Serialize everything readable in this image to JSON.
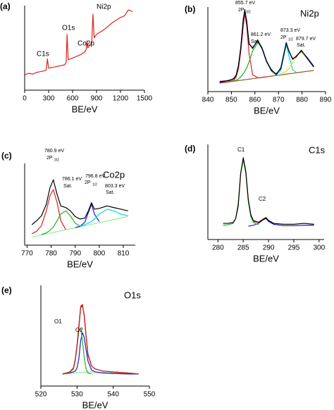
{
  "chart_data": [
    {
      "type": "line",
      "panel_label": "(a)",
      "xlabel": "BE/eV",
      "x": [
        0,
        50,
        100,
        150,
        200,
        250,
        270,
        285,
        300,
        400,
        500,
        520,
        531,
        545,
        600,
        700,
        750,
        770,
        780,
        790,
        840,
        855,
        870,
        900,
        1000,
        1100,
        1200,
        1250,
        1300,
        1350
      ],
      "xlim": [
        0,
        1500
      ],
      "xticks": [
        0,
        300,
        600,
        900,
        1200,
        1500
      ],
      "ylim": [
        0,
        100
      ],
      "series": [
        {
          "color": "#e0201b",
          "values": [
            18,
            20,
            19,
            21,
            22,
            23,
            24,
            37,
            26,
            28,
            30,
            33,
            66,
            36,
            38,
            42,
            45,
            48,
            58,
            50,
            56,
            90,
            62,
            66,
            72,
            80,
            86,
            88,
            95,
            93
          ]
        }
      ],
      "annotations": [
        "C1s",
        "O1s",
        "Co2p",
        "Ni2p"
      ]
    },
    {
      "type": "line",
      "panel_label": "(b)",
      "title": "Ni2p",
      "xlabel": "BE/eV",
      "x": [
        845,
        847,
        849,
        851,
        852,
        853,
        854,
        855,
        855.7,
        856.5,
        857.5,
        859,
        861.2,
        863,
        865,
        867,
        869,
        871,
        872,
        873.3,
        874.5,
        876,
        877.5,
        879.7,
        882,
        885
      ],
      "xlim": [
        840,
        890
      ],
      "xticks": [
        840,
        850,
        860,
        870,
        880,
        890
      ],
      "ylim": [
        0,
        100
      ],
      "series": [
        {
          "color": "#8b5a2b",
          "values": [
            10,
            10.75,
            11.5,
            12.25,
            12.6,
            13,
            13.4,
            13.75,
            14,
            14.3,
            14.7,
            15.25,
            16.1,
            16.75,
            17.5,
            18.25,
            19,
            19.75,
            20.1,
            20.6,
            21.1,
            21.6,
            22.2,
            23,
            23.9,
            25
          ]
        },
        {
          "color": "#e0201b",
          "values": [
            10.5,
            11,
            11.8,
            13.5,
            17,
            27,
            48,
            76,
            92,
            78,
            45,
            20,
            16.3,
            16.8,
            17.5,
            null,
            null,
            null,
            null,
            null,
            null,
            null,
            null,
            null,
            null,
            null
          ]
        },
        {
          "color": "#22b022",
          "values": [
            null,
            null,
            null,
            12.5,
            13.5,
            15,
            17.5,
            21,
            24,
            28,
            35,
            48,
            58,
            51,
            35,
            24,
            20,
            null,
            null,
            null,
            null,
            null,
            null,
            null,
            null,
            null
          ]
        },
        {
          "color": "#00d8e8",
          "values": [
            null,
            null,
            null,
            null,
            null,
            null,
            null,
            null,
            null,
            null,
            null,
            null,
            null,
            null,
            null,
            null,
            19.5,
            25,
            38,
            55,
            42,
            26,
            23,
            null,
            null,
            null
          ]
        },
        {
          "color": "#e8e000",
          "values": [
            null,
            null,
            null,
            null,
            null,
            null,
            null,
            null,
            null,
            null,
            null,
            null,
            null,
            null,
            null,
            null,
            null,
            21,
            22,
            24,
            27,
            34,
            41,
            47,
            40,
            30
          ]
        },
        {
          "color": "#1a1ad0",
          "values": [
            11,
            12,
            13.5,
            15,
            19,
            30,
            53,
            83,
            95,
            84,
            56,
            52,
            60,
            52,
            36,
            25,
            21,
            27,
            40,
            57,
            48,
            38,
            42,
            48,
            41,
            30
          ]
        },
        {
          "color": "#000000",
          "values": [
            12,
            12.5,
            13,
            15.5,
            19.5,
            31,
            52,
            85,
            97,
            82,
            57,
            51,
            61,
            51,
            35,
            26,
            20,
            28,
            41,
            58,
            47,
            39,
            41,
            49,
            40,
            29
          ]
        }
      ],
      "annotations": [
        "855.7 eV",
        "2P",
        "3/2",
        "861.2 eV",
        "Sat.",
        "873.3 eV",
        "2P",
        "1/2",
        "879.7 eV",
        "Sat."
      ]
    },
    {
      "type": "line",
      "panel_label": "(c)",
      "title": "Co2p",
      "xlabel": "BE/eV",
      "x": [
        772,
        774,
        776,
        778,
        779.5,
        780.9,
        782.5,
        784,
        786.1,
        788,
        790,
        792,
        794,
        795.5,
        796.8,
        798,
        800,
        803.3,
        806,
        809,
        812
      ],
      "xlim": [
        769,
        815
      ],
      "xticks": [
        770,
        780,
        790,
        800,
        810
      ],
      "ylim": [
        0,
        100
      ],
      "series": [
        {
          "color": "#90ee90",
          "values": [
            10,
            11.25,
            12.5,
            13.75,
            14.7,
            15.6,
            16.6,
            17.5,
            18.8,
            20,
            21.25,
            22.5,
            23.75,
            24.7,
            25.5,
            26.25,
            27.5,
            29.6,
            31.25,
            33.1,
            35
          ]
        },
        {
          "color": "#e0201b",
          "values": [
            14,
            17,
            24,
            42,
            60,
            68,
            52,
            30,
            19,
            null,
            null,
            null,
            null,
            null,
            null,
            null,
            null,
            null,
            null,
            null,
            null
          ]
        },
        {
          "color": "#22b022",
          "values": [
            null,
            null,
            13,
            15,
            18,
            22,
            30,
            38,
            42,
            36,
            27,
            23,
            null,
            null,
            null,
            null,
            null,
            null,
            null,
            null,
            null
          ]
        },
        {
          "color": "#1a1ad0",
          "values": [
            null,
            null,
            null,
            null,
            null,
            null,
            null,
            null,
            null,
            null,
            21.5,
            23,
            28,
            40,
            50,
            38,
            29,
            null,
            null,
            null,
            null
          ]
        },
        {
          "color": "#00d8e8",
          "values": [
            null,
            null,
            null,
            null,
            null,
            null,
            null,
            null,
            null,
            null,
            null,
            23,
            25,
            27,
            29,
            32,
            38,
            44,
            42,
            38,
            36
          ]
        },
        {
          "color": "#000000",
          "values": [
            25,
            30,
            36,
            50,
            70,
            80,
            62,
            48,
            46,
            42,
            35,
            32,
            33,
            42,
            52,
            44,
            45,
            48,
            46,
            44,
            42
          ]
        }
      ],
      "annotations": [
        "780.9 eV",
        "2P",
        "3/2",
        "786.1 eV",
        "Sat.",
        "796.8 eV",
        "2P",
        "1/2",
        "803.3 eV",
        "Sat."
      ]
    },
    {
      "type": "line",
      "panel_label": "(d)",
      "title": "C1s",
      "xlabel": "BE/eV",
      "x": [
        281,
        282,
        283,
        283.5,
        284,
        284.5,
        285,
        285.5,
        286,
        286.5,
        287,
        288,
        289,
        289.5,
        290,
        291,
        293,
        295,
        297,
        299
      ],
      "xlim": [
        278,
        301
      ],
      "xticks": [
        280,
        285,
        290,
        295,
        300
      ],
      "ylim": [
        0,
        100
      ],
      "series": [
        {
          "color": "#1a1ad0",
          "values": [
            null,
            null,
            null,
            null,
            null,
            null,
            null,
            null,
            14,
            14.5,
            15,
            17,
            21,
            22,
            19,
            16,
            14.5,
            14.5,
            15,
            15
          ]
        },
        {
          "color": "#22b022",
          "values": [
            15,
            15.5,
            17,
            22,
            38,
            70,
            84,
            70,
            40,
            24,
            18,
            15.5,
            null,
            null,
            null,
            null,
            null,
            null,
            null,
            null
          ]
        },
        {
          "color": "#e0201b",
          "values": [
            null,
            null,
            null,
            null,
            null,
            null,
            null,
            null,
            null,
            null,
            19,
            18,
            22,
            23,
            20,
            17,
            null,
            null,
            null,
            null
          ]
        },
        {
          "color": "#000000",
          "values": [
            17,
            17,
            18,
            22,
            35,
            70,
            86,
            72,
            42,
            26,
            20,
            18,
            21,
            23,
            20,
            17,
            16,
            16,
            17,
            16
          ]
        }
      ],
      "annotations": [
        "C1",
        "C2"
      ]
    },
    {
      "type": "line",
      "panel_label": "(e)",
      "title": "O1s",
      "xlabel": "BE/eV",
      "x": [
        526,
        527,
        528,
        529,
        529.5,
        530,
        530.5,
        531,
        531.5,
        532,
        532.5,
        533,
        534,
        535,
        537,
        540,
        544,
        547
      ],
      "xlim": [
        520,
        550
      ],
      "xticks": [
        520,
        530,
        540,
        550
      ],
      "ylim": [
        0,
        100
      ],
      "series": [
        {
          "color": "#90ee90",
          "values": [
            12,
            12,
            12.5,
            13,
            13,
            13,
            13.5,
            13.5,
            13.5,
            14,
            14,
            14,
            14,
            14,
            13.5,
            13,
            12.5,
            12
          ]
        },
        {
          "color": "#1a1ad0",
          "values": [
            12,
            12.5,
            13,
            14,
            15,
            18,
            27,
            45,
            53,
            48,
            36,
            25,
            16,
            14,
            13,
            12.5,
            12,
            12
          ]
        },
        {
          "color": "#22b022",
          "values": [
            12,
            12.5,
            13.5,
            17,
            25,
            40,
            55,
            57,
            45,
            28,
            17,
            13,
            12,
            null,
            null,
            null,
            null,
            null
          ]
        },
        {
          "color": "#000000",
          "values": [
            12,
            13,
            14,
            18,
            26,
            40,
            58,
            78,
            80,
            70,
            50,
            32,
            20,
            17,
            15,
            14,
            13,
            12
          ]
        },
        {
          "color": "#e0201b",
          "values": [
            12,
            13,
            14,
            18,
            26,
            41,
            60,
            79,
            81,
            69,
            49,
            31,
            20,
            17,
            15,
            14,
            13,
            12
          ]
        }
      ],
      "annotations": [
        "O1",
        "O2"
      ]
    }
  ]
}
